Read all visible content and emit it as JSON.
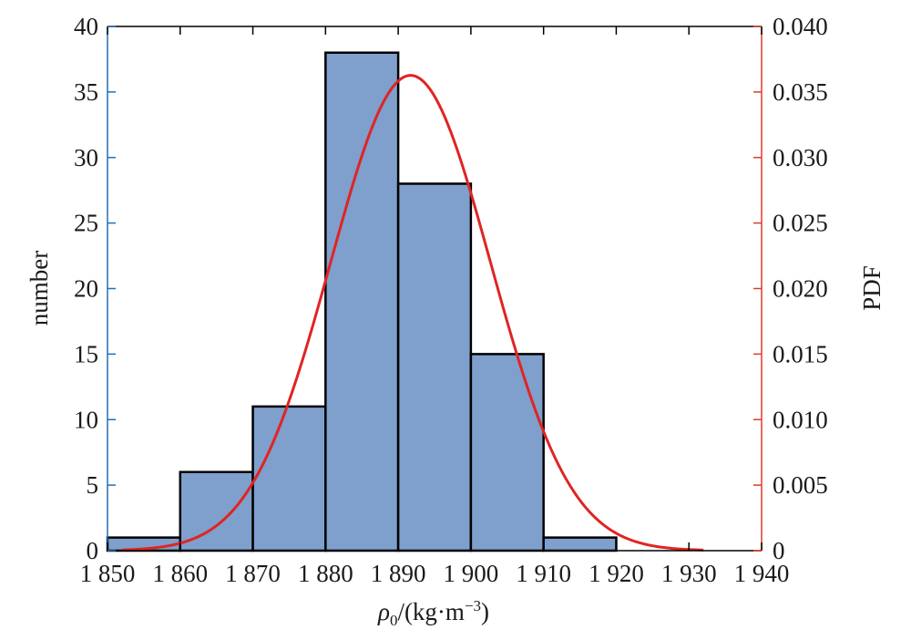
{
  "chart_data": {
    "type": "bar",
    "subtype": "histogram-with-pdf",
    "bin_edges": [
      1850,
      1860,
      1870,
      1880,
      1890,
      1900,
      1910,
      1920
    ],
    "counts": [
      1,
      6,
      11,
      38,
      28,
      15,
      1
    ],
    "x_ticks": [
      "1 850",
      "1 860",
      "1 870",
      "1 880",
      "1 890",
      "1 900",
      "1 910",
      "1 920",
      "1 930",
      "1 940"
    ],
    "x_tick_values": [
      1850,
      1860,
      1870,
      1880,
      1890,
      1900,
      1910,
      1920,
      1930,
      1940
    ],
    "xlim": [
      1850,
      1940
    ],
    "xlabel": {
      "main": "ρ",
      "sub": "0",
      "rest": "/(kg·m",
      "sup": "−3",
      "close": ")"
    },
    "ylabel_left": "number",
    "ylim_left": [
      0,
      40
    ],
    "y_ticks_left": [
      "0",
      "5",
      "10",
      "15",
      "20",
      "25",
      "30",
      "35",
      "40"
    ],
    "ylabel_right": "PDF",
    "ylim_right": [
      0,
      0.04
    ],
    "y_ticks_right": [
      "0",
      "0.005",
      "0.010",
      "0.015",
      "0.020",
      "0.025",
      "0.030",
      "0.035",
      "0.040"
    ],
    "pdf_curve": {
      "mean": 1891.7,
      "sd": 11.0,
      "x_range": [
        1852,
        1932
      ]
    },
    "colors": {
      "bar_fill": "#7f9fcc",
      "bar_edge": "#000000",
      "pdf_line": "#e02424",
      "left_axis": "#1f6fb8",
      "right_axis": "#e03a2a"
    },
    "grid": false
  }
}
